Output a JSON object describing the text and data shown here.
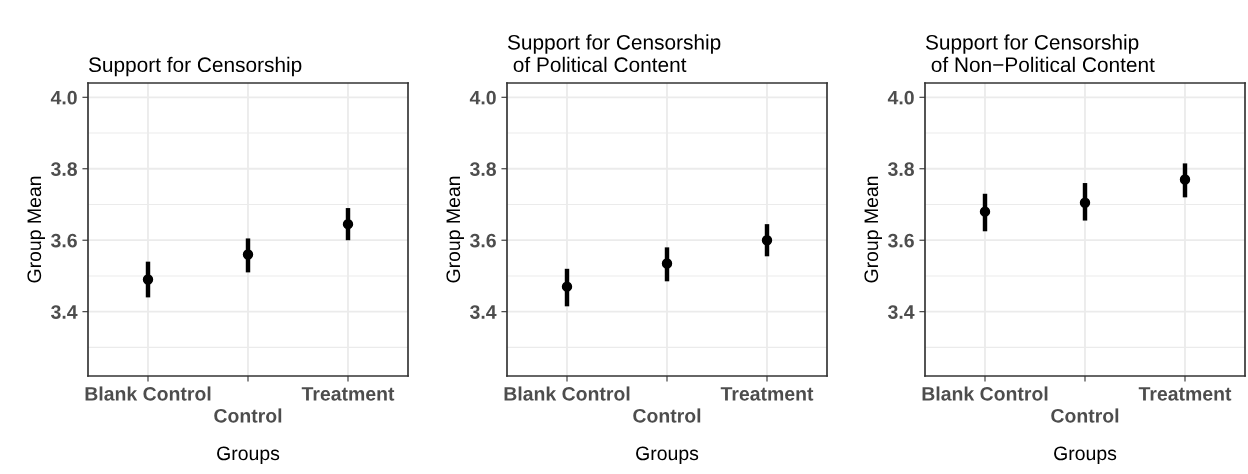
{
  "chart_data": [
    {
      "type": "scatter",
      "title": "Support for Censorship",
      "xlabel": "Groups",
      "ylabel": "Group Mean",
      "categories": [
        "Blank Control",
        "Control",
        "Treatment"
      ],
      "series": [
        {
          "color": "#000000",
          "values": [
            3.49,
            3.56,
            3.645
          ],
          "errors": [
            [
              3.44,
              3.54
            ],
            [
              3.51,
              3.605
            ],
            [
              3.6,
              3.69
            ]
          ]
        }
      ],
      "ylim": [
        3.22,
        4.04
      ],
      "yticks": [
        {
          "value": 3.3,
          "label": null
        },
        3.4,
        {
          "value": 3.5,
          "label": null
        },
        3.6,
        {
          "value": 3.7,
          "label": null
        },
        3.8,
        {
          "value": 3.9,
          "label": null
        },
        {
          "value": 4,
          "label": "4.0"
        }
      ],
      "grid": true,
      "marker": "circle"
    },
    {
      "type": "scatter",
      "title": "Support for Censorship\n of Political Content",
      "xlabel": "Groups",
      "ylabel": "Group Mean",
      "categories": [
        "Blank Control",
        "Control",
        "Treatment"
      ],
      "series": [
        {
          "color": "#000000",
          "values": [
            3.47,
            3.535,
            3.6
          ],
          "errors": [
            [
              3.415,
              3.52
            ],
            [
              3.485,
              3.58
            ],
            [
              3.555,
              3.645
            ]
          ]
        }
      ],
      "ylim": [
        3.22,
        4.04
      ],
      "yticks": [
        {
          "value": 3.3,
          "label": null
        },
        3.4,
        {
          "value": 3.5,
          "label": null
        },
        3.6,
        {
          "value": 3.7,
          "label": null
        },
        3.8,
        {
          "value": 3.9,
          "label": null
        },
        {
          "value": 4,
          "label": "4.0"
        }
      ],
      "grid": true,
      "marker": "circle"
    },
    {
      "type": "scatter",
      "title": "Support for Censorship\n of Non−Political Content",
      "xlabel": "Groups",
      "ylabel": "Group Mean",
      "categories": [
        "Blank Control",
        "Control",
        "Treatment"
      ],
      "series": [
        {
          "color": "#000000",
          "values": [
            3.68,
            3.705,
            3.77
          ],
          "errors": [
            [
              3.625,
              3.73
            ],
            [
              3.655,
              3.76
            ],
            [
              3.72,
              3.815
            ]
          ]
        }
      ],
      "ylim": [
        3.22,
        4.04
      ],
      "yticks": [
        {
          "value": 3.3,
          "label": null
        },
        3.4,
        {
          "value": 3.5,
          "label": null
        },
        3.6,
        {
          "value": 3.7,
          "label": null
        },
        3.8,
        {
          "value": 3.9,
          "label": null
        },
        {
          "value": 4,
          "label": "4.0"
        }
      ],
      "grid": true,
      "marker": "circle"
    }
  ]
}
